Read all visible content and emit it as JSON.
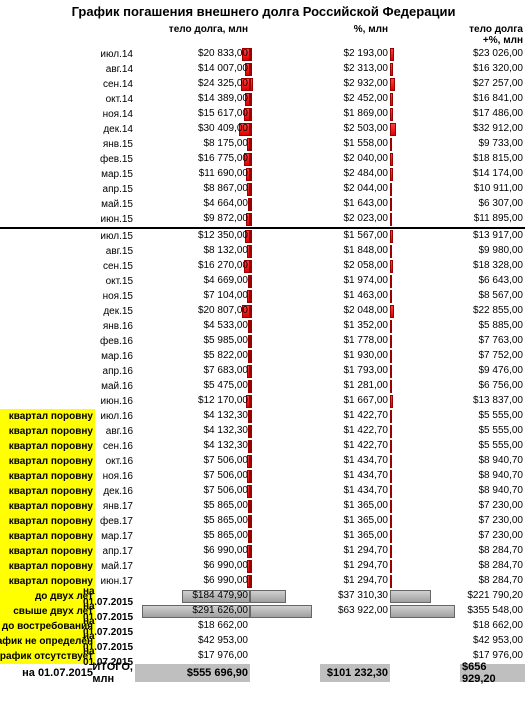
{
  "title": "График погашения внешнего долга Российской Федерации",
  "columns": {
    "body": "тело долга, млн",
    "pct": "%, млн",
    "total": "тело долга +%, млн"
  },
  "max_values": {
    "body": 310000,
    "pct": 72000,
    "total": 380000
  },
  "colors": {
    "bar_red": "#e00000",
    "bar_grey": "#a0a0a0",
    "yellow": "#ffff00",
    "grey_bg": "#bfbfbf",
    "divider": "#000000"
  },
  "rows": [
    {
      "period": "июл.14",
      "body": 20833.0,
      "body_fmt": "$20 833,00",
      "pct": 2193.0,
      "pct_fmt": "$2 193,00",
      "total": 23026.0,
      "total_fmt": "$23 026,00",
      "color": "red"
    },
    {
      "period": "авг.14",
      "body": 14007.0,
      "body_fmt": "$14 007,00",
      "pct": 2313.0,
      "pct_fmt": "$2 313,00",
      "total": 16320.0,
      "total_fmt": "$16 320,00",
      "color": "red"
    },
    {
      "period": "сен.14",
      "body": 24325.0,
      "body_fmt": "$24 325,00",
      "pct": 2932.0,
      "pct_fmt": "$2 932,00",
      "total": 27257.0,
      "total_fmt": "$27 257,00",
      "color": "red"
    },
    {
      "period": "окт.14",
      "body": 14389.0,
      "body_fmt": "$14 389,00",
      "pct": 2452.0,
      "pct_fmt": "$2 452,00",
      "total": 16841.0,
      "total_fmt": "$16 841,00",
      "color": "red"
    },
    {
      "period": "ноя.14",
      "body": 15617.0,
      "body_fmt": "$15 617,00",
      "pct": 1869.0,
      "pct_fmt": "$1 869,00",
      "total": 17486.0,
      "total_fmt": "$17 486,00",
      "color": "red"
    },
    {
      "period": "дек.14",
      "body": 30409.0,
      "body_fmt": "$30 409,00",
      "pct": 2503.0,
      "pct_fmt": "$2 503,00",
      "total": 32912.0,
      "total_fmt": "$32 912,00",
      "color": "red"
    },
    {
      "period": "янв.15",
      "body": 8175.0,
      "body_fmt": "$8 175,00",
      "pct": 1558.0,
      "pct_fmt": "$1 558,00",
      "total": 9733.0,
      "total_fmt": "$9 733,00",
      "color": "red"
    },
    {
      "period": "фев.15",
      "body": 16775.0,
      "body_fmt": "$16 775,00",
      "pct": 2040.0,
      "pct_fmt": "$2 040,00",
      "total": 18815.0,
      "total_fmt": "$18 815,00",
      "color": "red"
    },
    {
      "period": "мар.15",
      "body": 11690.0,
      "body_fmt": "$11 690,00",
      "pct": 2484.0,
      "pct_fmt": "$2 484,00",
      "total": 14174.0,
      "total_fmt": "$14 174,00",
      "color": "red"
    },
    {
      "period": "апр.15",
      "body": 8867.0,
      "body_fmt": "$8 867,00",
      "pct": 2044.0,
      "pct_fmt": "$2 044,00",
      "total": 10911.0,
      "total_fmt": "$10 911,00",
      "color": "red"
    },
    {
      "period": "май.15",
      "body": 4664.0,
      "body_fmt": "$4 664,00",
      "pct": 1643.0,
      "pct_fmt": "$1 643,00",
      "total": 6307.0,
      "total_fmt": "$6 307,00",
      "color": "red"
    },
    {
      "period": "июн.15",
      "body": 9872.0,
      "body_fmt": "$9 872,00",
      "pct": 2023.0,
      "pct_fmt": "$2 023,00",
      "total": 11895.0,
      "total_fmt": "$11 895,00",
      "color": "red"
    },
    {
      "divider": true
    },
    {
      "period": "июл.15",
      "body": 12350.0,
      "body_fmt": "$12 350,00",
      "pct": 1567.0,
      "pct_fmt": "$1 567,00",
      "total": 13917.0,
      "total_fmt": "$13 917,00",
      "color": "red"
    },
    {
      "period": "авг.15",
      "body": 8132.0,
      "body_fmt": "$8 132,00",
      "pct": 1848.0,
      "pct_fmt": "$1 848,00",
      "total": 9980.0,
      "total_fmt": "$9 980,00",
      "color": "red"
    },
    {
      "period": "сен.15",
      "body": 16270.0,
      "body_fmt": "$16 270,00",
      "pct": 2058.0,
      "pct_fmt": "$2 058,00",
      "total": 18328.0,
      "total_fmt": "$18 328,00",
      "color": "red"
    },
    {
      "period": "окт.15",
      "body": 4669.0,
      "body_fmt": "$4 669,00",
      "pct": 1974.0,
      "pct_fmt": "$1 974,00",
      "total": 6643.0,
      "total_fmt": "$6 643,00",
      "color": "red"
    },
    {
      "period": "ноя.15",
      "body": 7104.0,
      "body_fmt": "$7 104,00",
      "pct": 1463.0,
      "pct_fmt": "$1 463,00",
      "total": 8567.0,
      "total_fmt": "$8 567,00",
      "color": "red"
    },
    {
      "period": "дек.15",
      "body": 20807.0,
      "body_fmt": "$20 807,00",
      "pct": 2048.0,
      "pct_fmt": "$2 048,00",
      "total": 22855.0,
      "total_fmt": "$22 855,00",
      "color": "red"
    },
    {
      "period": "янв.16",
      "body": 4533.0,
      "body_fmt": "$4 533,00",
      "pct": 1352.0,
      "pct_fmt": "$1 352,00",
      "total": 5885.0,
      "total_fmt": "$5 885,00",
      "color": "red"
    },
    {
      "period": "фев.16",
      "body": 5985.0,
      "body_fmt": "$5 985,00",
      "pct": 1778.0,
      "pct_fmt": "$1 778,00",
      "total": 7763.0,
      "total_fmt": "$7 763,00",
      "color": "red"
    },
    {
      "period": "мар.16",
      "body": 5822.0,
      "body_fmt": "$5 822,00",
      "pct": 1930.0,
      "pct_fmt": "$1 930,00",
      "total": 7752.0,
      "total_fmt": "$7 752,00",
      "color": "red"
    },
    {
      "period": "апр.16",
      "body": 7683.0,
      "body_fmt": "$7 683,00",
      "pct": 1793.0,
      "pct_fmt": "$1 793,00",
      "total": 9476.0,
      "total_fmt": "$9 476,00",
      "color": "red"
    },
    {
      "period": "май.16",
      "body": 5475.0,
      "body_fmt": "$5 475,00",
      "pct": 1281.0,
      "pct_fmt": "$1 281,00",
      "total": 6756.0,
      "total_fmt": "$6 756,00",
      "color": "red"
    },
    {
      "period": "июн.16",
      "body": 12170.0,
      "body_fmt": "$12 170,00",
      "pct": 1667.0,
      "pct_fmt": "$1 667,00",
      "total": 13837.0,
      "total_fmt": "$13 837,00",
      "color": "red"
    },
    {
      "note": "квартал поровну",
      "period": "июл.16",
      "body": 4132.3,
      "body_fmt": "$4 132,30",
      "pct": 1422.7,
      "pct_fmt": "$1 422,70",
      "total": 5555.0,
      "total_fmt": "$5 555,00",
      "color": "red",
      "yellow": true
    },
    {
      "note": "квартал поровну",
      "period": "авг.16",
      "body": 4132.3,
      "body_fmt": "$4 132,30",
      "pct": 1422.7,
      "pct_fmt": "$1 422,70",
      "total": 5555.0,
      "total_fmt": "$5 555,00",
      "color": "red",
      "yellow": true
    },
    {
      "note": "квартал поровну",
      "period": "сен.16",
      "body": 4132.3,
      "body_fmt": "$4 132,30",
      "pct": 1422.7,
      "pct_fmt": "$1 422,70",
      "total": 5555.0,
      "total_fmt": "$5 555,00",
      "color": "red",
      "yellow": true
    },
    {
      "note": "квартал поровну",
      "period": "окт.16",
      "body": 7506.0,
      "body_fmt": "$7 506,00",
      "pct": 1434.7,
      "pct_fmt": "$1 434,70",
      "total": 8940.7,
      "total_fmt": "$8 940,70",
      "color": "red",
      "yellow": true
    },
    {
      "note": "квартал поровну",
      "period": "ноя.16",
      "body": 7506.0,
      "body_fmt": "$7 506,00",
      "pct": 1434.7,
      "pct_fmt": "$1 434,70",
      "total": 8940.7,
      "total_fmt": "$8 940,70",
      "color": "red",
      "yellow": true
    },
    {
      "note": "квартал поровну",
      "period": "дек.16",
      "body": 7506.0,
      "body_fmt": "$7 506,00",
      "pct": 1434.7,
      "pct_fmt": "$1 434,70",
      "total": 8940.7,
      "total_fmt": "$8 940,70",
      "color": "red",
      "yellow": true
    },
    {
      "note": "квартал поровну",
      "period": "янв.17",
      "body": 5865.0,
      "body_fmt": "$5 865,00",
      "pct": 1365.0,
      "pct_fmt": "$1 365,00",
      "total": 7230.0,
      "total_fmt": "$7 230,00",
      "color": "red",
      "yellow": true
    },
    {
      "note": "квартал поровну",
      "period": "фев.17",
      "body": 5865.0,
      "body_fmt": "$5 865,00",
      "pct": 1365.0,
      "pct_fmt": "$1 365,00",
      "total": 7230.0,
      "total_fmt": "$7 230,00",
      "color": "red",
      "yellow": true
    },
    {
      "note": "квартал поровну",
      "period": "мар.17",
      "body": 5865.0,
      "body_fmt": "$5 865,00",
      "pct": 1365.0,
      "pct_fmt": "$1 365,00",
      "total": 7230.0,
      "total_fmt": "$7 230,00",
      "color": "red",
      "yellow": true
    },
    {
      "note": "квартал поровну",
      "period": "апр.17",
      "body": 6990.0,
      "body_fmt": "$6 990,00",
      "pct": 1294.7,
      "pct_fmt": "$1 294,70",
      "total": 8284.7,
      "total_fmt": "$8 284,70",
      "color": "red",
      "yellow": true
    },
    {
      "note": "квартал поровну",
      "period": "май.17",
      "body": 6990.0,
      "body_fmt": "$6 990,00",
      "pct": 1294.7,
      "pct_fmt": "$1 294,70",
      "total": 8284.7,
      "total_fmt": "$8 284,70",
      "color": "red",
      "yellow": true
    },
    {
      "note": "квартал поровну",
      "period": "июн.17",
      "body": 6990.0,
      "body_fmt": "$6 990,00",
      "pct": 1294.7,
      "pct_fmt": "$1 294,70",
      "total": 8284.7,
      "total_fmt": "$8 284,70",
      "color": "red",
      "yellow": true
    },
    {
      "note": "до двух лет",
      "period": "на 01.07.2015",
      "body": 184479.9,
      "body_fmt": "$184 479,90",
      "pct": 37310.3,
      "pct_fmt": "$37 310,30",
      "total": 221790.2,
      "total_fmt": "$221 790,20",
      "color": "grey",
      "yellow": true,
      "bold": true
    },
    {
      "note": "свыше двух лет",
      "period": "на 01.07.2015",
      "body": 291626.0,
      "body_fmt": "$291 626,00",
      "pct": 63922.0,
      "pct_fmt": "$63 922,00",
      "total": 355548.0,
      "total_fmt": "$355 548,00",
      "color": "grey",
      "yellow": true,
      "bold": true
    },
    {
      "note": "до востребования",
      "period": "на 01.07.2015",
      "body": 18662.0,
      "body_fmt": "$18 662,00",
      "total": 18662.0,
      "total_fmt": "$18 662,00",
      "yellow": true,
      "bold": true,
      "nobars": true
    },
    {
      "note": "график не определён",
      "period": "на 01.07.2015",
      "body": 42953.0,
      "body_fmt": "$42 953,00",
      "total": 42953.0,
      "total_fmt": "$42 953,00",
      "yellow": true,
      "bold": true,
      "nobars": true
    },
    {
      "note": "график отсутствует",
      "period": "на 01.07.2015",
      "body": 17976.0,
      "body_fmt": "$17 976,00",
      "total": 17976.0,
      "total_fmt": "$17 976,00",
      "yellow": true,
      "bold": true,
      "nobars": true
    }
  ],
  "total": {
    "label": "на 01.07.2015",
    "sublabel": "ИТОГО, млн",
    "body": "$555 696,90",
    "pct": "$101 232,30",
    "total": "$656 929,20"
  }
}
